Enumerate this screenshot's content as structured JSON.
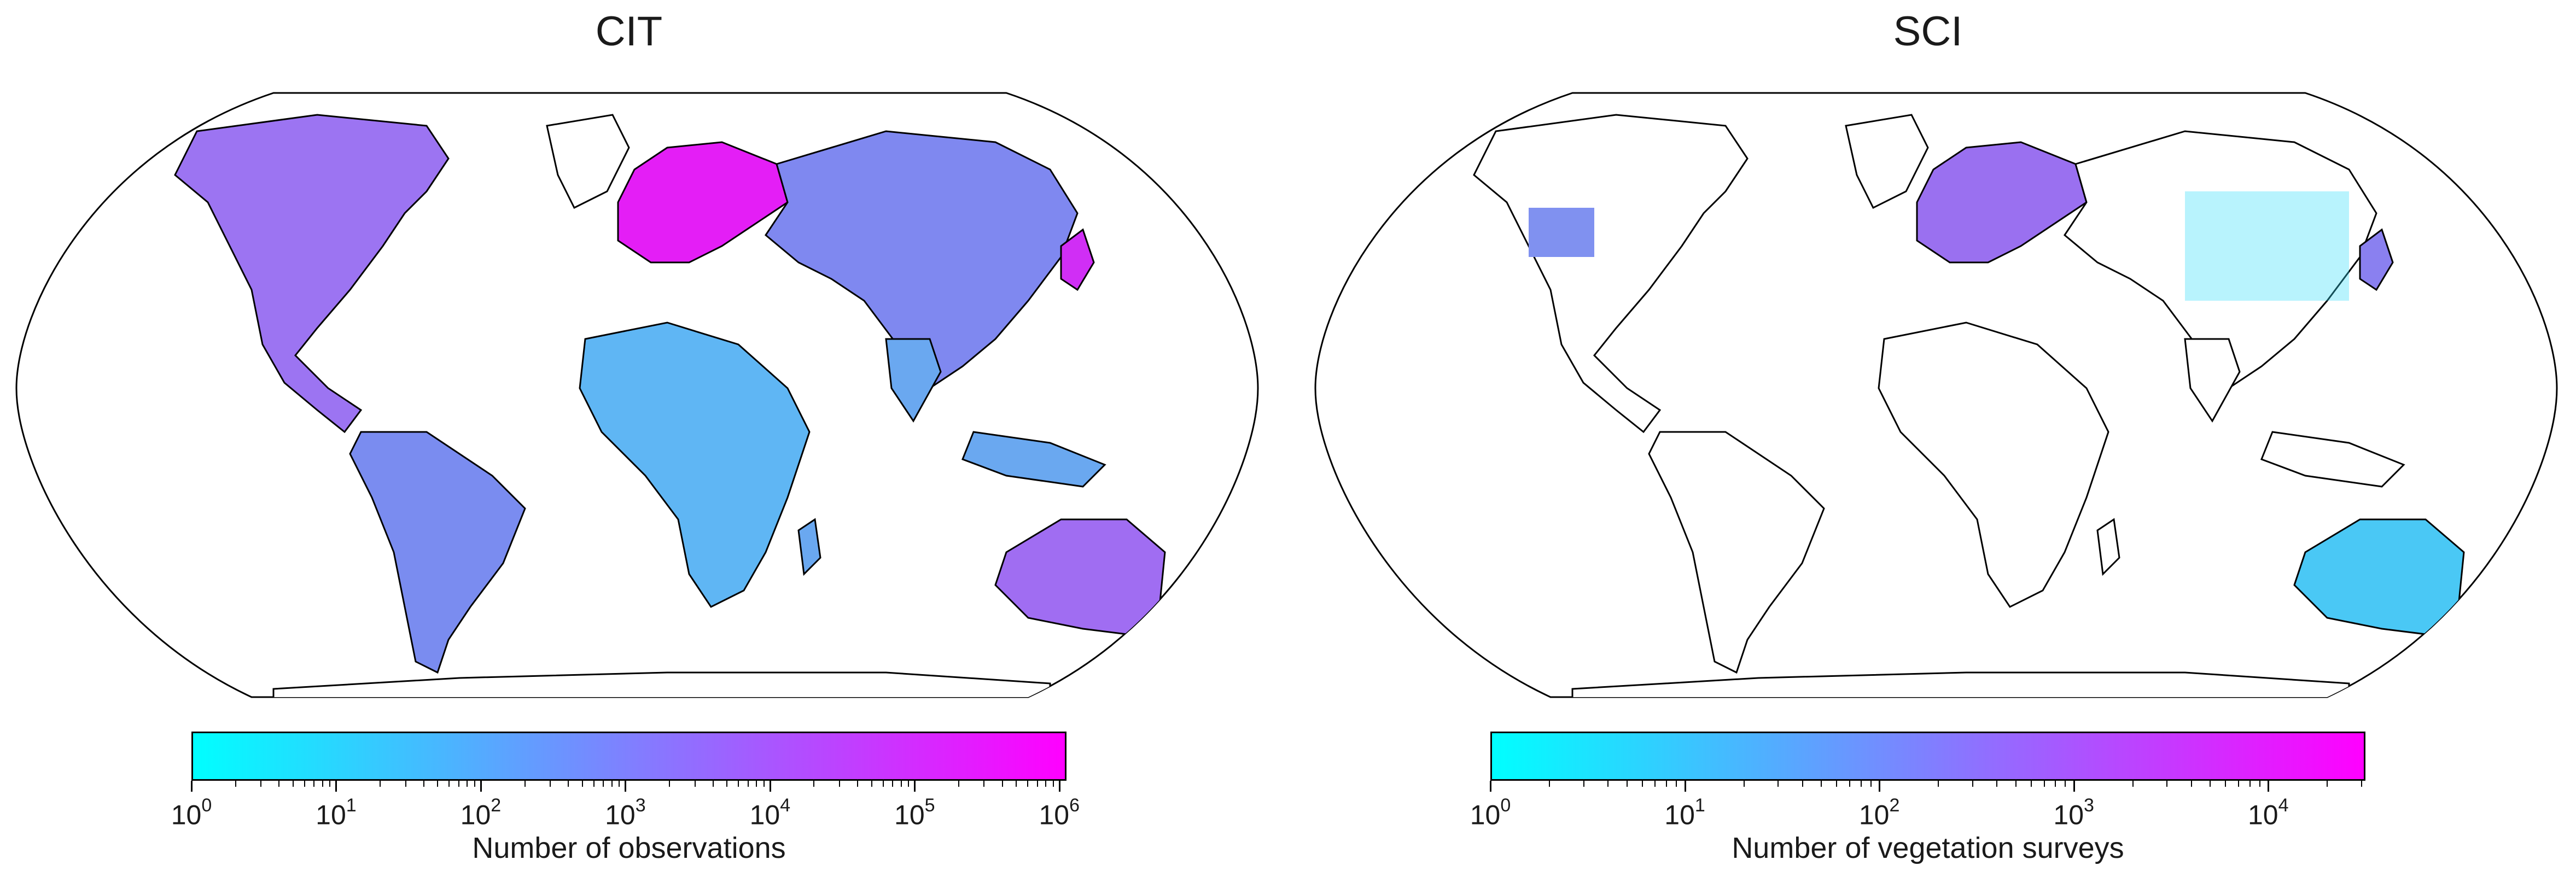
{
  "maps": [
    {
      "title": "CIT",
      "colorbar": {
        "label": "Number of observations",
        "ticks": [
          "10",
          "10",
          "10",
          "10",
          "10",
          "10",
          "10"
        ],
        "exponents": [
          "0",
          "1",
          "2",
          "3",
          "4",
          "5",
          "6"
        ],
        "max_exponent": 6.05,
        "colors": [
          "#00ffff",
          "#ff00ff"
        ]
      },
      "hotspots": [
        {
          "region": "North America",
          "level": 0.45
        },
        {
          "region": "Europe",
          "level": 0.95
        },
        {
          "region": "Japan",
          "level": 0.8
        },
        {
          "region": "South America",
          "level": 0.35
        },
        {
          "region": "Africa",
          "level": 0.3
        },
        {
          "region": "Asia",
          "level": 0.35
        },
        {
          "region": "Australia",
          "level": 0.55
        }
      ]
    },
    {
      "title": "SCI",
      "colorbar": {
        "label": "Number of vegetation surveys",
        "ticks": [
          "10",
          "10",
          "10",
          "10",
          "10"
        ],
        "exponents": [
          "0",
          "1",
          "2",
          "3",
          "4"
        ],
        "max_exponent": 4.5,
        "colors": [
          "#00ffff",
          "#ff00ff"
        ]
      },
      "hotspots": [
        {
          "region": "Western USA",
          "level": 0.35
        },
        {
          "region": "Europe",
          "level": 0.6
        },
        {
          "region": "Japan",
          "level": 0.55
        },
        {
          "region": "Eastern Asia",
          "level": 0.15
        },
        {
          "region": "Australia",
          "level": 0.25
        }
      ]
    }
  ]
}
